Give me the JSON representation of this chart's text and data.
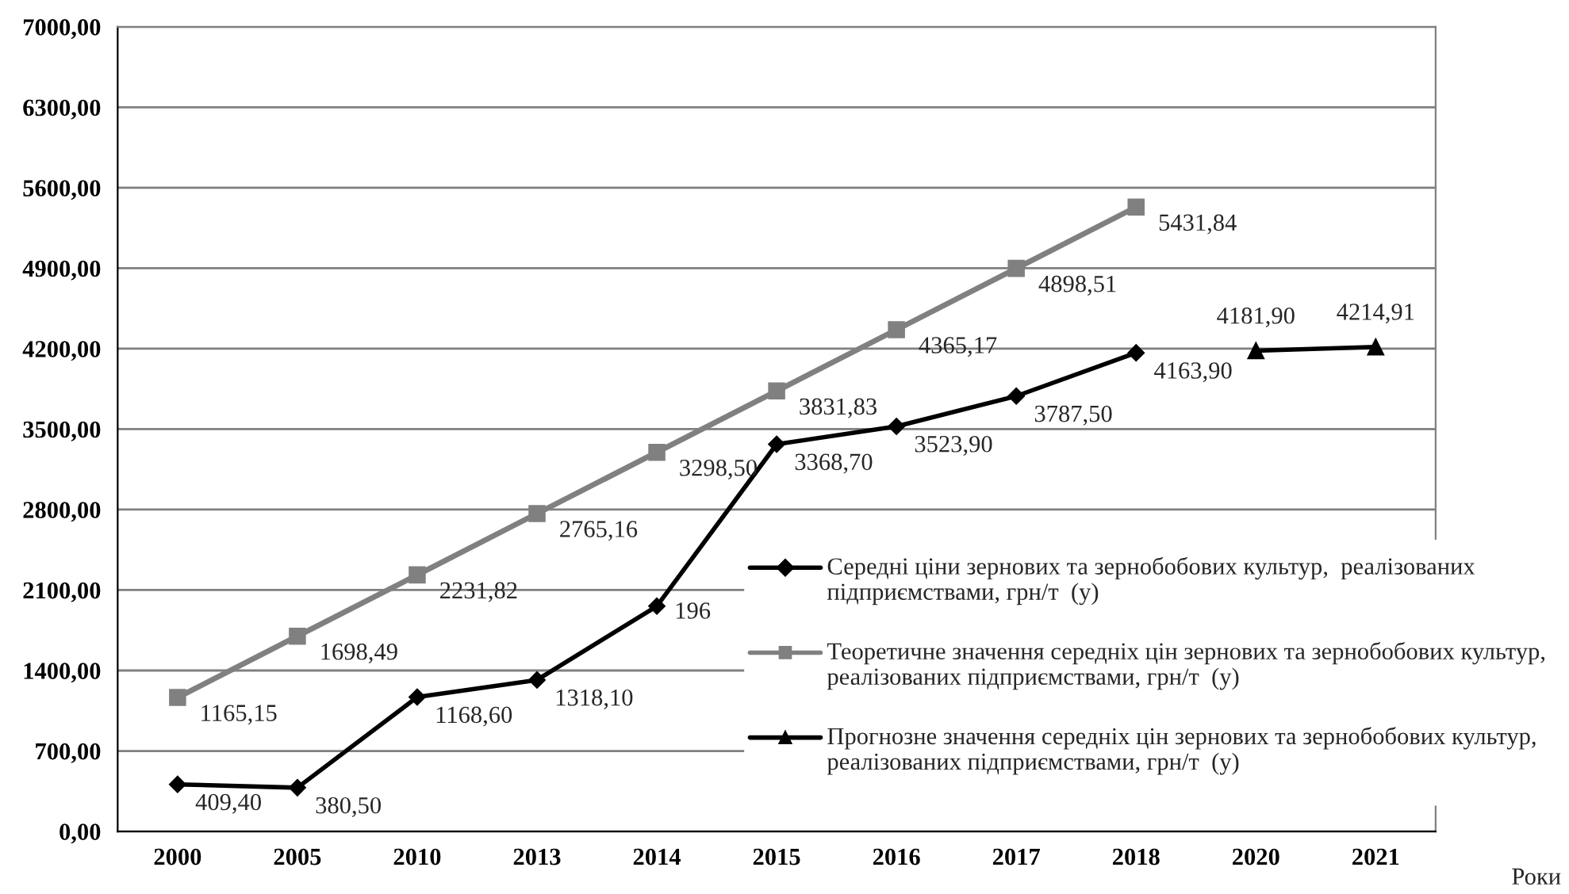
{
  "chart_data": {
    "type": "line",
    "xlabel": "Роки",
    "categories": [
      "2000",
      "2005",
      "2010",
      "2013",
      "2014",
      "2015",
      "2016",
      "2017",
      "2018",
      "2020",
      "2021"
    ],
    "series": [
      {
        "name": "Середні ціни зернових та зернобобових культур,  реалізованих підприємствами, грн/т  (у)",
        "color": "#000000",
        "marker": "diamond",
        "values": [
          409.4,
          380.5,
          1168.6,
          1318.1,
          1960,
          3368.7,
          3523.9,
          3787.5,
          4163.9,
          null,
          null
        ],
        "value_labels": [
          "409,40",
          "380,50",
          "1168,60",
          "1318,10",
          null,
          "3368,70",
          "3523,90",
          "3787,50",
          "4163,90",
          null,
          null
        ]
      },
      {
        "name": "Теоретичне значення середніх цін зернових та зернобобових культур,  реалізованих підприємствами, грн/т  (у)",
        "color": "#808080",
        "marker": "square",
        "values": [
          1165.15,
          1698.49,
          2231.82,
          2765.16,
          3298.5,
          3831.83,
          4365.17,
          4898.51,
          5431.84,
          null,
          null
        ],
        "value_labels": [
          "1165,15",
          "1698,49",
          "2231,82",
          "2765,16",
          "3298,50",
          "3831,83",
          "4365,17",
          "4898,51",
          "5431,84",
          null,
          null
        ]
      },
      {
        "name": "Прогнозне значення середніх цін зернових та зернобобових культур,  реалізованих підприємствами, грн/т  (у)",
        "color": "#000000",
        "marker": "triangle",
        "values": [
          null,
          null,
          null,
          null,
          null,
          null,
          null,
          null,
          null,
          4181.9,
          4214.91
        ],
        "value_labels": [
          null,
          null,
          null,
          null,
          null,
          null,
          null,
          null,
          null,
          "4181,90",
          "4214,91"
        ]
      }
    ],
    "ylim": [
      0,
      7000
    ],
    "yticks": [
      {
        "value": 0,
        "label": "0,00"
      },
      {
        "value": 700,
        "label": "700,00"
      },
      {
        "value": 1400,
        "label": "1400,00"
      },
      {
        "value": 2100,
        "label": "2100,00"
      },
      {
        "value": 2800,
        "label": "2800,00"
      },
      {
        "value": 3500,
        "label": "3500,00"
      },
      {
        "value": 4200,
        "label": "4200,00"
      },
      {
        "value": 4900,
        "label": "4900,00"
      },
      {
        "value": 5600,
        "label": "5600,00"
      },
      {
        "value": 6300,
        "label": "6300,00"
      },
      {
        "value": 7000,
        "label": "7000,00"
      }
    ],
    "annotations": [
      {
        "text": "196",
        "x": "2014",
        "y": 1960
      }
    ],
    "grid": "y",
    "legend": "bottom right",
    "line_style": "solid"
  }
}
